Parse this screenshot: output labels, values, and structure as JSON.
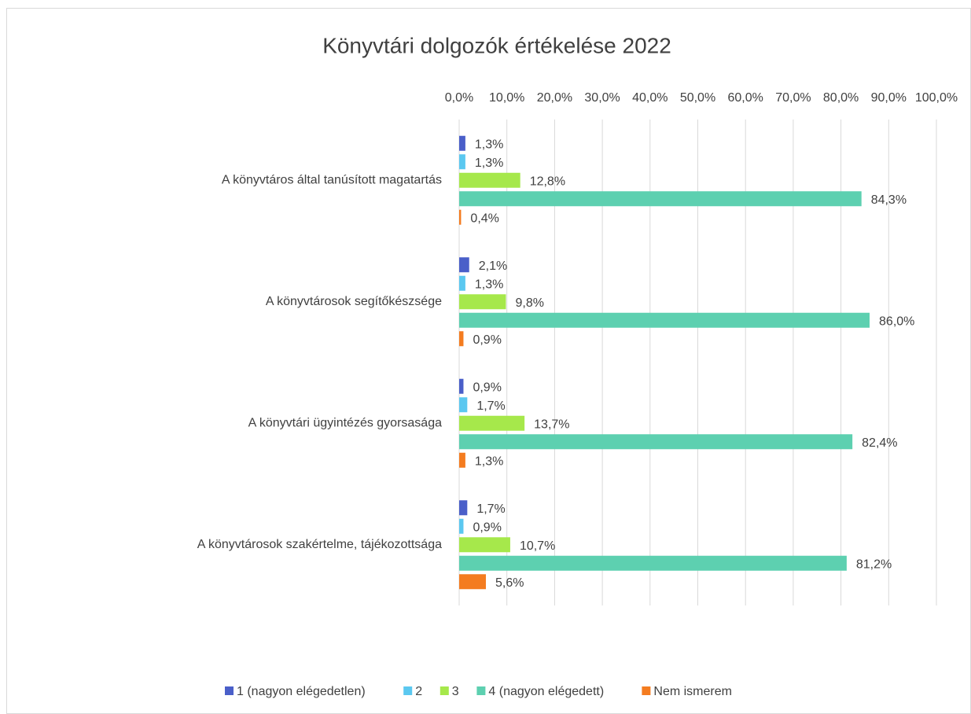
{
  "chart_data": {
    "type": "hbar",
    "title": "Könyvtári dolgozók értékelése 2022",
    "categories": [
      "A könyvtáros által tanúsított magatartás",
      "A könyvtárosok segítőkészsége",
      "A könyvtári ügyintézés gyorsasága",
      "A könyvtárosok szakértelme, tájékozottsága"
    ],
    "series": [
      {
        "name": "1 (nagyon elégedetlen)",
        "color": "#4a5fc9",
        "values": [
          1.3,
          2.1,
          0.9,
          1.7
        ],
        "value_labels": [
          "1,3%",
          "2,1%",
          "0,9%",
          "1,7%"
        ]
      },
      {
        "name": "2",
        "color": "#5bc8f0",
        "values": [
          1.3,
          1.3,
          1.7,
          0.9
        ],
        "value_labels": [
          "1,3%",
          "1,3%",
          "1,7%",
          "0,9%"
        ]
      },
      {
        "name": "3",
        "color": "#a6e84b",
        "values": [
          12.8,
          9.8,
          13.7,
          10.7
        ],
        "value_labels": [
          "12,8%",
          "9,8%",
          "13,7%",
          "10,7%"
        ]
      },
      {
        "name": "4 (nagyon elégedett)",
        "color": "#5dd0b0",
        "values": [
          84.3,
          86.0,
          82.4,
          81.2
        ],
        "value_labels": [
          "84,3%",
          "86,0%",
          "82,4%",
          "81,2%"
        ]
      },
      {
        "name": "Nem ismerem",
        "color": "#f47c20",
        "values": [
          0.4,
          0.9,
          1.3,
          5.6
        ],
        "value_labels": [
          "0,4%",
          "0,9%",
          "1,3%",
          "5,6%"
        ]
      }
    ],
    "xlim": [
      0,
      100
    ],
    "xticks": [
      {
        "value": 0,
        "label": "0,0%"
      },
      {
        "value": 10,
        "label": "10,0%"
      },
      {
        "value": 20,
        "label": "20,0%"
      },
      {
        "value": 30,
        "label": "30,0%"
      },
      {
        "value": 40,
        "label": "40,0%"
      },
      {
        "value": 50,
        "label": "50,0%"
      },
      {
        "value": 60,
        "label": "60,0%"
      },
      {
        "value": 70,
        "label": "70,0%"
      },
      {
        "value": 80,
        "label": "80,0%"
      },
      {
        "value": 90,
        "label": "90,0%"
      },
      {
        "value": 100,
        "label": "100,0%"
      }
    ],
    "grid": true,
    "legend": "bottom"
  }
}
